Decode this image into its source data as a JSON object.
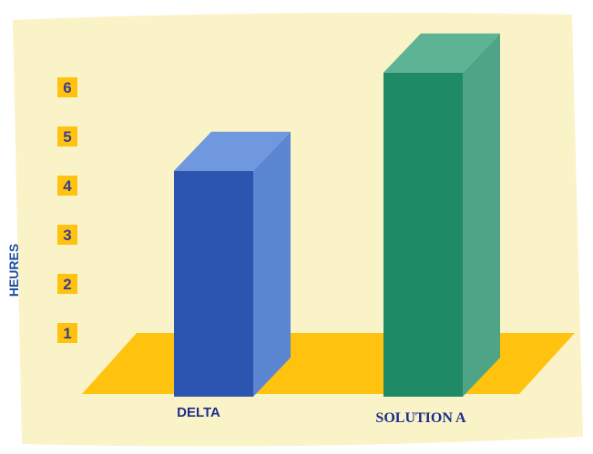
{
  "chart_data": {
    "type": "bar",
    "categories": [
      "DELTA",
      "SOLUTION A"
    ],
    "values": [
      4.3,
      6.3
    ],
    "xlabel": "",
    "ylabel": "HEURES",
    "yticks": [
      "1",
      "2",
      "3",
      "4",
      "5",
      "6"
    ],
    "ylim": [
      0,
      7
    ],
    "grid": false,
    "style": "3d"
  },
  "colors": {
    "background": "#FBF3C8",
    "floor": "#FFC20E",
    "tick_badge": "#FFC20E",
    "tick_text": "#3C3E8C",
    "axis_label": "#1F4FA0",
    "category_label": "#1B2F8C",
    "bar_delta_front": "#2B55B0",
    "bar_delta_side": "#5A86D2",
    "bar_delta_top": "#6F98DF",
    "bar_solution_front": "#1E8A66",
    "bar_solution_side": "#4FA488",
    "bar_solution_top": "#5DB394"
  }
}
